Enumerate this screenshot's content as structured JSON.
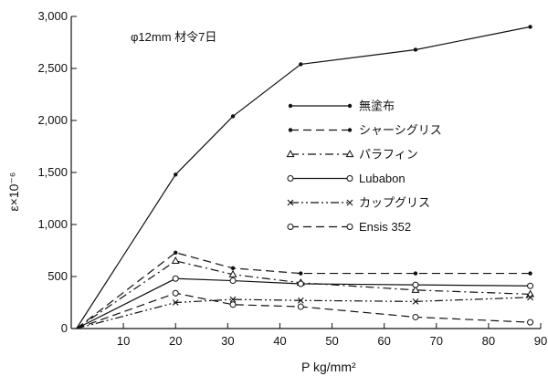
{
  "chart_data": {
    "type": "line",
    "title": "",
    "annotation": "φ12mm 材令7日",
    "xlabel": "P kg/mm²",
    "ylabel": "ε×10⁻⁶",
    "xlim": [
      0,
      90
    ],
    "ylim": [
      0,
      3000
    ],
    "xticks": [
      10,
      20,
      30,
      40,
      50,
      60,
      70,
      80,
      90
    ],
    "yticks": [
      0,
      500,
      1000,
      1500,
      2000,
      2500,
      3000
    ],
    "ytick_labels": [
      "0",
      "500",
      "1,000",
      "1,500",
      "2,000",
      "2,500",
      "3,000"
    ],
    "xtick_labels": [
      "10",
      "20",
      "30",
      "40",
      "50",
      "60",
      "70",
      "80",
      "90"
    ],
    "grid": false,
    "legend_position": "center-right",
    "series": [
      {
        "name": "無塗布",
        "style": "solid",
        "marker": "dot",
        "points": [
          [
            1,
            0
          ],
          [
            20,
            1480
          ],
          [
            31,
            2040
          ],
          [
            44,
            2540
          ],
          [
            66,
            2680
          ],
          [
            88,
            2900
          ]
        ]
      },
      {
        "name": "シャーシグリス",
        "style": "dash",
        "marker": "dot",
        "points": [
          [
            1,
            0
          ],
          [
            20,
            730
          ],
          [
            31,
            580
          ],
          [
            44,
            530
          ],
          [
            66,
            530
          ],
          [
            88,
            530
          ]
        ]
      },
      {
        "name": "パラフィン",
        "style": "dashdot",
        "marker": "triangle",
        "points": [
          [
            1,
            0
          ],
          [
            20,
            650
          ],
          [
            31,
            520
          ],
          [
            44,
            440
          ],
          [
            66,
            370
          ],
          [
            88,
            330
          ]
        ]
      },
      {
        "name": "Lubabon",
        "style": "solid",
        "marker": "circle",
        "points": [
          [
            1,
            0
          ],
          [
            20,
            480
          ],
          [
            31,
            460
          ],
          [
            44,
            430
          ],
          [
            66,
            420
          ],
          [
            88,
            410
          ]
        ]
      },
      {
        "name": "カップグリス",
        "style": "dashdotdot",
        "marker": "x",
        "points": [
          [
            1,
            0
          ],
          [
            20,
            250
          ],
          [
            31,
            280
          ],
          [
            44,
            270
          ],
          [
            66,
            260
          ],
          [
            88,
            300
          ]
        ]
      },
      {
        "name": "Ensis 352",
        "style": "dash",
        "marker": "circle",
        "points": [
          [
            1,
            0
          ],
          [
            20,
            340
          ],
          [
            31,
            230
          ],
          [
            44,
            210
          ],
          [
            66,
            110
          ],
          [
            88,
            60
          ]
        ]
      }
    ]
  }
}
